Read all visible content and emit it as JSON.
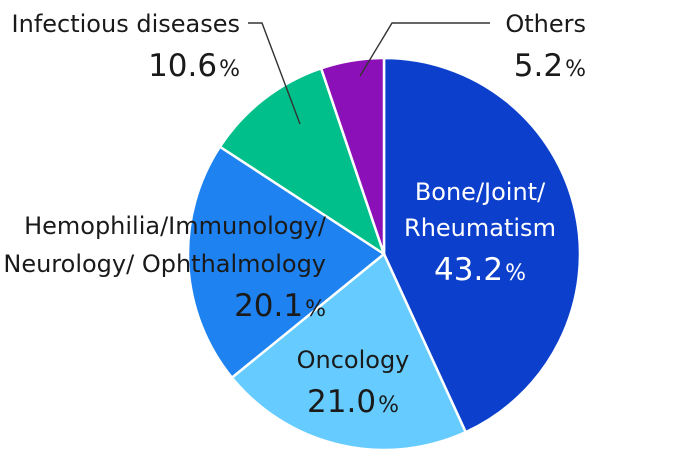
{
  "chart_data": {
    "type": "pie",
    "unit": "%",
    "slices": [
      {
        "label_lines": [
          "Bone/Joint/",
          "Rheumatism"
        ],
        "value": 43.2,
        "value_text": "43.2",
        "color": "#0c3fcc",
        "label_color": "#ffffff"
      },
      {
        "label_lines": [
          "Oncology"
        ],
        "value": 21.0,
        "value_text": "21.0",
        "color": "#66ccff",
        "label_color": "#1a1a1a"
      },
      {
        "label_lines": [
          "Hemophilia/Immunology/",
          "Neurology/ Ophthalmology"
        ],
        "value": 20.1,
        "value_text": "20.1",
        "color": "#1e82f0",
        "label_color": "#1a1a1a"
      },
      {
        "label_lines": [
          "Infectious diseases"
        ],
        "value": 10.6,
        "value_text": "10.6",
        "color": "#00bf8a",
        "label_color": "#1a1a1a"
      },
      {
        "label_lines": [
          "Others"
        ],
        "value": 5.2,
        "value_text": "5.2",
        "color": "#8c10b8",
        "label_color": "#1a1a1a"
      }
    ]
  }
}
